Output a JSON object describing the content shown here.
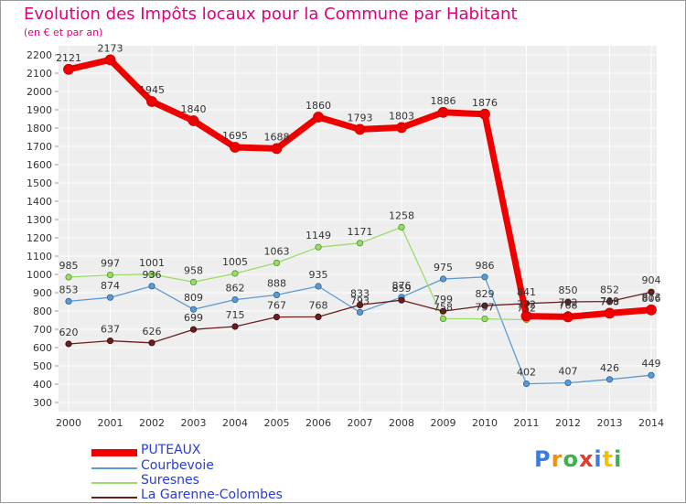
{
  "chart_data": {
    "type": "line",
    "title": "Evolution des Impôts locaux pour la Commune par Habitant",
    "subtitle": "(en € et par an)",
    "x": [
      "2000",
      "2001",
      "2002",
      "2003",
      "2004",
      "2005",
      "2006",
      "2007",
      "2008",
      "2009",
      "2010",
      "2011",
      "2012",
      "2013",
      "2014"
    ],
    "ylim": [
      300,
      2200
    ],
    "yticks": [
      300,
      400,
      500,
      600,
      700,
      800,
      900,
      1000,
      1100,
      1200,
      1300,
      1400,
      1500,
      1600,
      1700,
      1800,
      1900,
      2000,
      2100,
      2200
    ],
    "grid": true,
    "legend_position": "bottom-left",
    "series": [
      {
        "name": "PUTEAUX",
        "color": "#ee0000",
        "values": [
          2121,
          2173,
          1945,
          1840,
          1695,
          1688,
          1860,
          1793,
          1803,
          1886,
          1876,
          772,
          768,
          788,
          806
        ]
      },
      {
        "name": "Courbevoie",
        "color": "#5b9bd5",
        "values": [
          853,
          874,
          936,
          809,
          862,
          888,
          935,
          793,
          876,
          975,
          986,
          402,
          407,
          426,
          449
        ]
      },
      {
        "name": "Suresnes",
        "color": "#99dd66",
        "values": [
          985,
          997,
          1001,
          958,
          1005,
          1063,
          1149,
          1171,
          1258,
          758,
          757,
          752,
          782,
          789,
          813
        ]
      },
      {
        "name": "La Garenne-Colombes",
        "color": "#6b1e1e",
        "values": [
          620,
          637,
          626,
          699,
          715,
          767,
          768,
          833,
          859,
          799,
          829,
          841,
          850,
          852,
          904
        ]
      }
    ]
  },
  "logo": {
    "letters": [
      "P",
      "r",
      "o",
      "x",
      "i",
      "t",
      "i"
    ],
    "colors": [
      "#3b7ddd",
      "#f29100",
      "#3bb34a",
      "#e23b2b",
      "#3b7ddd",
      "#f2c200",
      "#3bb34a"
    ]
  }
}
